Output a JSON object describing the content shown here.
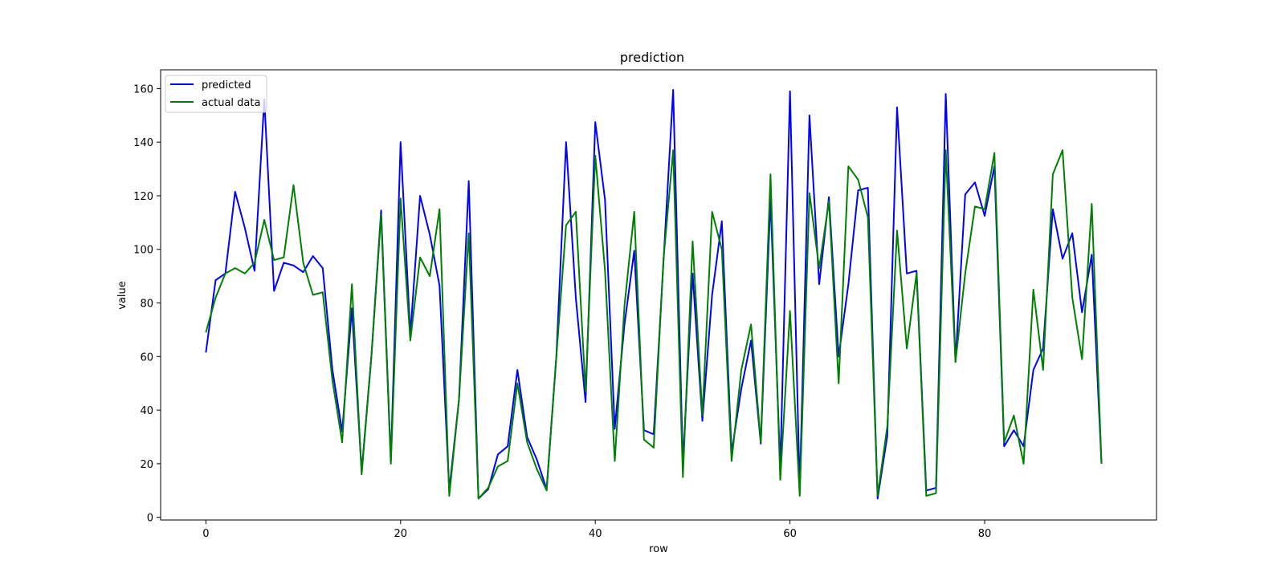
{
  "chart_data": {
    "type": "line",
    "title": "prediction",
    "xlabel": "row",
    "ylabel": "value",
    "xlim": [
      -4.65,
      97.65
    ],
    "ylim": [
      -1,
      167
    ],
    "xticks": [
      0,
      20,
      40,
      60,
      80
    ],
    "yticks": [
      0,
      20,
      40,
      60,
      80,
      100,
      120,
      140,
      160
    ],
    "grid": false,
    "legend_position": "upper left",
    "series": [
      {
        "name": "predicted",
        "color": "#0000ff",
        "values": [
          61.5,
          88.5,
          91,
          121.5,
          108,
          92,
          156,
          84.5,
          95,
          94,
          91.5,
          97.5,
          93,
          55,
          32,
          78,
          17,
          60,
          114.5,
          21,
          140,
          68,
          120,
          105.5,
          86.5,
          10,
          44,
          125.5,
          7,
          10.5,
          23.5,
          26.5,
          55,
          30,
          21.5,
          10.5,
          60,
          140,
          82,
          43,
          147.5,
          118.5,
          33,
          72,
          99.5,
          32.5,
          31,
          95,
          159.5,
          20,
          91,
          36,
          83,
          110.5,
          24,
          48,
          66,
          27.5,
          119,
          18,
          159,
          10,
          150,
          87,
          119.5,
          60,
          87,
          122,
          123,
          7,
          30.5,
          153,
          91,
          92,
          10,
          11,
          158,
          58,
          120.5,
          125,
          112.5,
          131,
          26.5,
          32.5,
          26.5,
          55,
          63,
          115,
          96.5,
          106,
          76.5,
          98,
          20
        ]
      },
      {
        "name": "actual data",
        "color": "#008000",
        "values": [
          69,
          82,
          91,
          93,
          91,
          95,
          111,
          96,
          97,
          124,
          95,
          83,
          84,
          51,
          28,
          87,
          16,
          60,
          113,
          20,
          119,
          66,
          97,
          90,
          115,
          8,
          44,
          106,
          7,
          11,
          19,
          21,
          50,
          28,
          18,
          10,
          60,
          109,
          114,
          47,
          135,
          92,
          21,
          79,
          114,
          29,
          26,
          96,
          137,
          15,
          103,
          38,
          114,
          100,
          21,
          55,
          72,
          28,
          128,
          14,
          77,
          8,
          121,
          93,
          118,
          50,
          131,
          126,
          112,
          8,
          34,
          107,
          63,
          91,
          8,
          9,
          137,
          58,
          91,
          116,
          115,
          136,
          28,
          38,
          20,
          85,
          55,
          128,
          137,
          82,
          59,
          117,
          20
        ]
      }
    ]
  }
}
